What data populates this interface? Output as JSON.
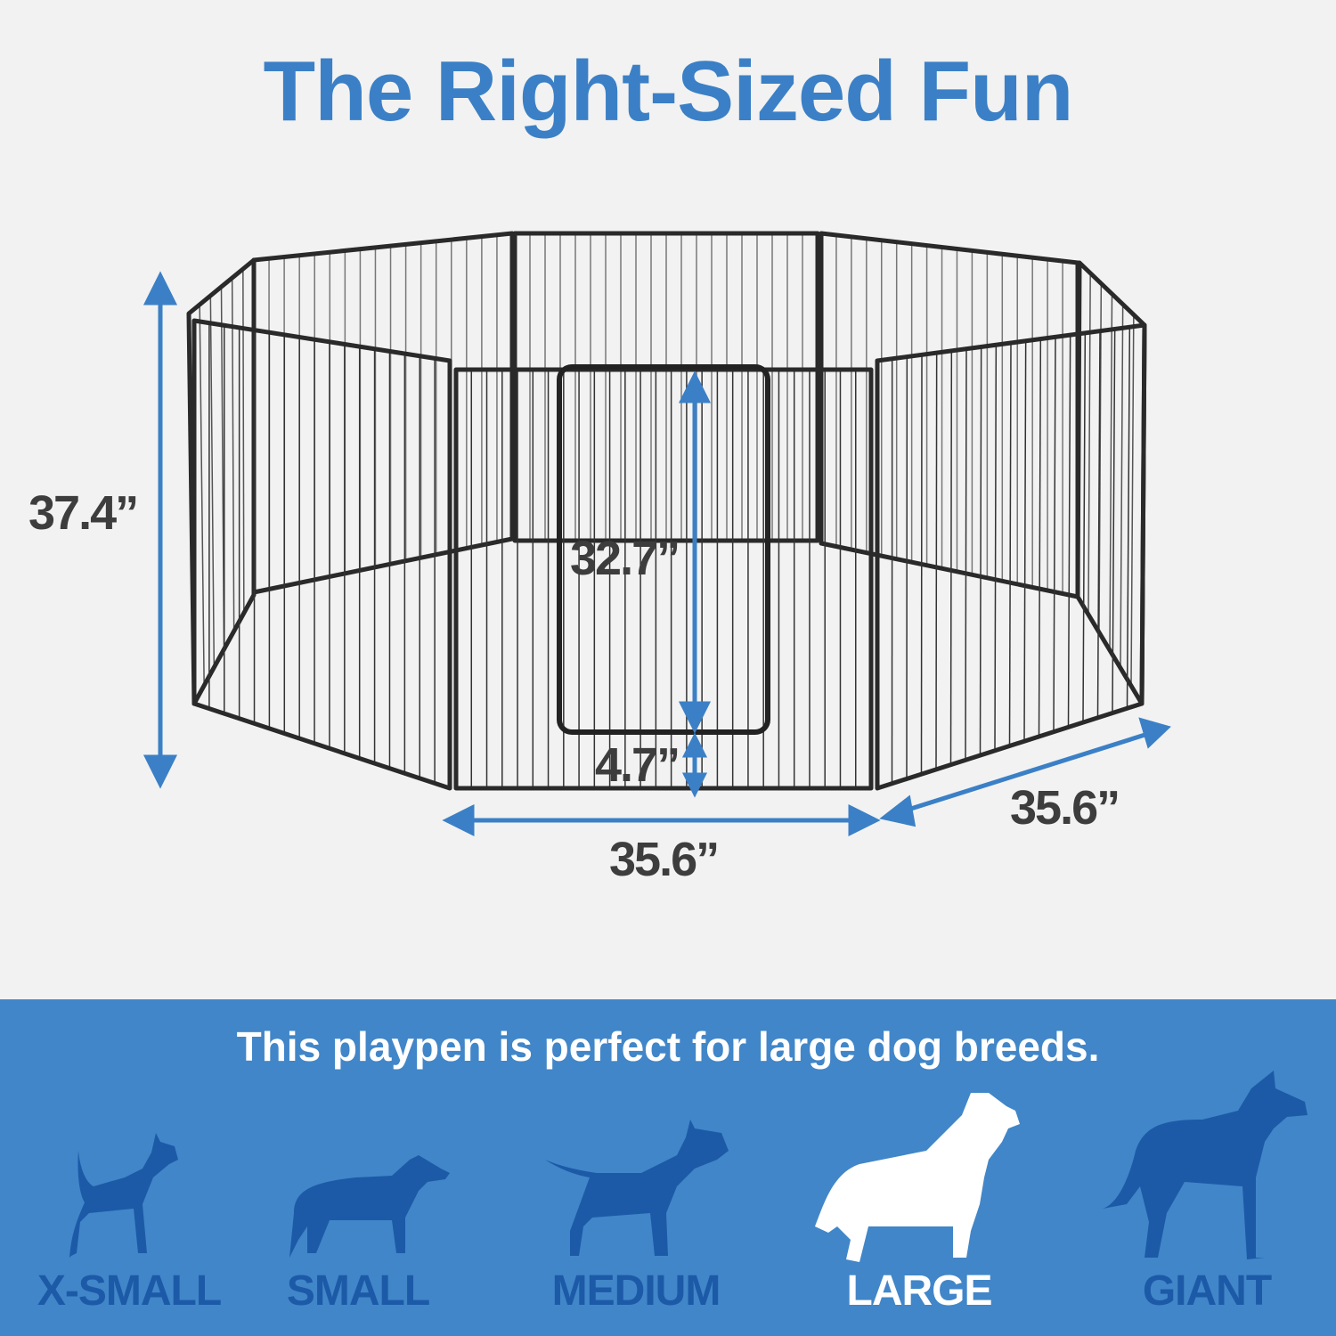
{
  "title": "The Right-Sized Fun",
  "dimensions": {
    "height": "37.4”",
    "door_height": "32.7”",
    "door_gap": "4.7”",
    "front_width": "35.6”",
    "side_width": "35.6”"
  },
  "banner": {
    "text": "This playpen is perfect for large dog breeds.",
    "sizes": [
      {
        "label": "X-SMALL",
        "icon": "chihuahua-silhouette-icon",
        "active": false
      },
      {
        "label": "SMALL",
        "icon": "dachshund-silhouette-icon",
        "active": false
      },
      {
        "label": "MEDIUM",
        "icon": "bull-terrier-silhouette-icon",
        "active": false
      },
      {
        "label": "LARGE",
        "icon": "golden-retriever-silhouette-icon",
        "active": true
      },
      {
        "label": "GIANT",
        "icon": "great-dane-silhouette-icon",
        "active": false
      }
    ]
  },
  "colors": {
    "accent": "#3b80c6",
    "band": "#4186c8",
    "inactive_dog": "#1c5aa8",
    "active_dog": "#ffffff",
    "fence": "#333333"
  }
}
